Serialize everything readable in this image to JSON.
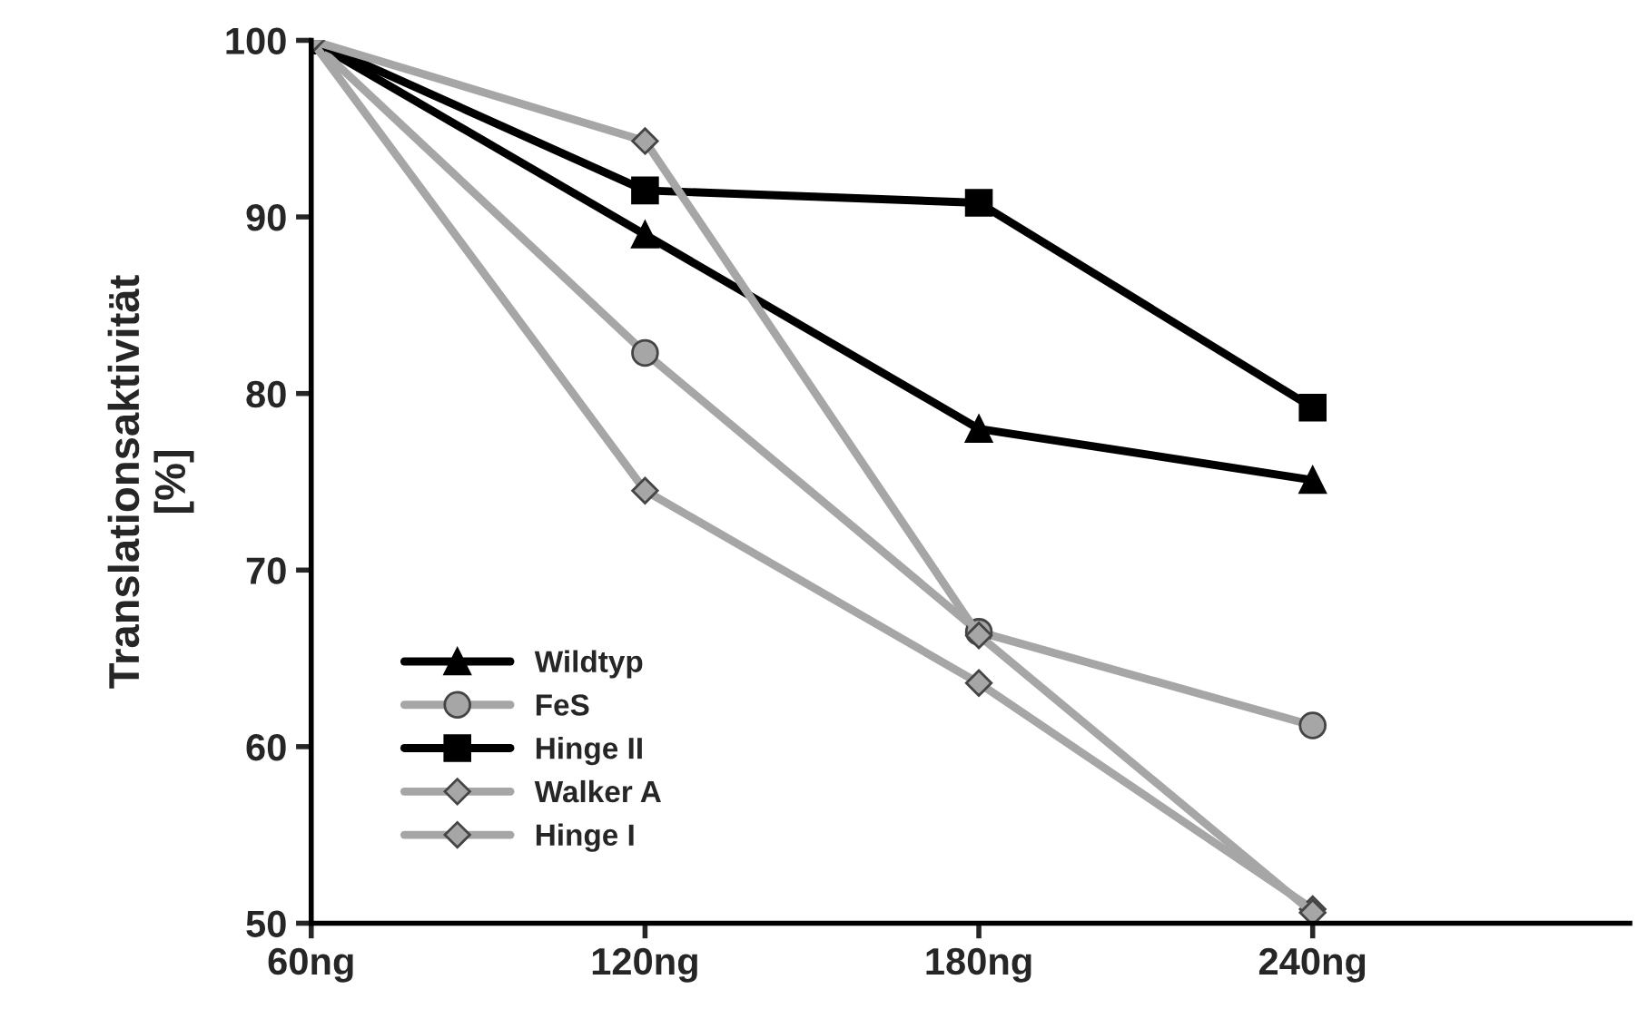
{
  "chart_data": {
    "type": "line",
    "ylabel": "Translationsaktivität\n[%]",
    "categories": [
      "60ng",
      "120ng",
      "180ng",
      "240ng"
    ],
    "series": [
      {
        "name": "Wildtyp",
        "color": "#000000",
        "marker": "triangle",
        "values": [
          100,
          89.0,
          78.0,
          75.1
        ]
      },
      {
        "name": "FeS",
        "color": "#a6a6a6",
        "marker": "circle",
        "values": [
          100,
          82.3,
          66.5,
          61.2
        ]
      },
      {
        "name": "Hinge II",
        "color": "#000000",
        "marker": "square",
        "values": [
          100,
          91.5,
          90.8,
          79.2
        ]
      },
      {
        "name": "Walker A",
        "color": "#a6a6a6",
        "marker": "diamond",
        "values": [
          100,
          74.5,
          63.6,
          50.8
        ]
      },
      {
        "name": "Hinge I",
        "color": "#a6a6a6",
        "marker": "diamond",
        "values": [
          100,
          94.3,
          66.3,
          50.6
        ]
      }
    ],
    "ylim": [
      50,
      100
    ],
    "yticks": [
      50,
      60,
      70,
      80,
      90,
      100
    ],
    "grid": false,
    "legend": "bottom left"
  }
}
